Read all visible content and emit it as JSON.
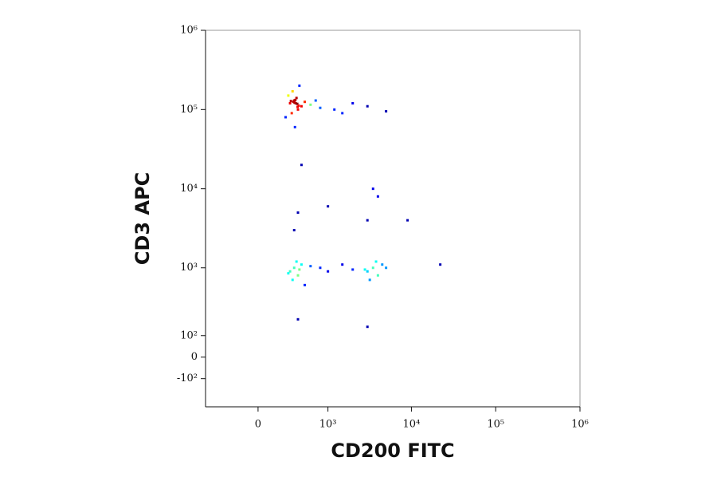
{
  "chart_data": {
    "type": "scatter",
    "xlabel": "CD200 FITC",
    "ylabel": "CD3 APC",
    "scale": "biexponential",
    "xlim": [
      -600,
      1000000
    ],
    "ylim": [
      -300,
      1000000
    ],
    "xticks": [
      0,
      {
        "value": 1000,
        "label": "10³"
      },
      {
        "value": 10000,
        "label": "10⁴"
      },
      {
        "value": 100000,
        "label": "10⁵"
      },
      {
        "value": 1000000,
        "label": "10⁶"
      }
    ],
    "yticks": [
      {
        "value": -100,
        "label": "-10²"
      },
      0,
      {
        "value": 100,
        "label": "10²"
      },
      {
        "value": 1000,
        "label": "10³"
      },
      {
        "value": 10000,
        "label": "10⁴"
      },
      {
        "value": 100000,
        "label": "10⁵"
      },
      {
        "value": 1000000,
        "label": "10⁶"
      }
    ],
    "x": [
      300,
      350,
      400,
      280,
      450,
      320,
      380,
      500,
      600,
      800,
      1200,
      2000,
      3000,
      5000,
      250,
      420,
      360,
      330,
      700,
      1500,
      340,
      370,
      390,
      310,
      410,
      355,
      365,
      395,
      300,
      350,
      400,
      450,
      330,
      380,
      420,
      280,
      500,
      600,
      3000,
      3500,
      4000,
      4500,
      3200,
      3800,
      2800,
      5000,
      800,
      1000,
      1500,
      2000,
      350,
      400,
      3000,
      4000,
      1000,
      450,
      3500,
      22000,
      9000,
      3000,
      400
    ],
    "y": [
      120000,
      130000,
      100000,
      150000,
      110000,
      90000,
      140000,
      125000,
      115000,
      105000,
      100000,
      120000,
      110000,
      95000,
      80000,
      200000,
      60000,
      170000,
      130000,
      90000,
      125000,
      120000,
      118000,
      128000,
      112000,
      122000,
      132000,
      108000,
      900,
      1000,
      800,
      1100,
      700,
      1200,
      950,
      850,
      600,
      1050,
      900,
      1000,
      800,
      1100,
      700,
      1200,
      950,
      1000,
      1000,
      900,
      1100,
      950,
      3000,
      5000,
      4000,
      8000,
      6000,
      20000,
      10000,
      1100,
      4000,
      150,
      200
    ]
  }
}
